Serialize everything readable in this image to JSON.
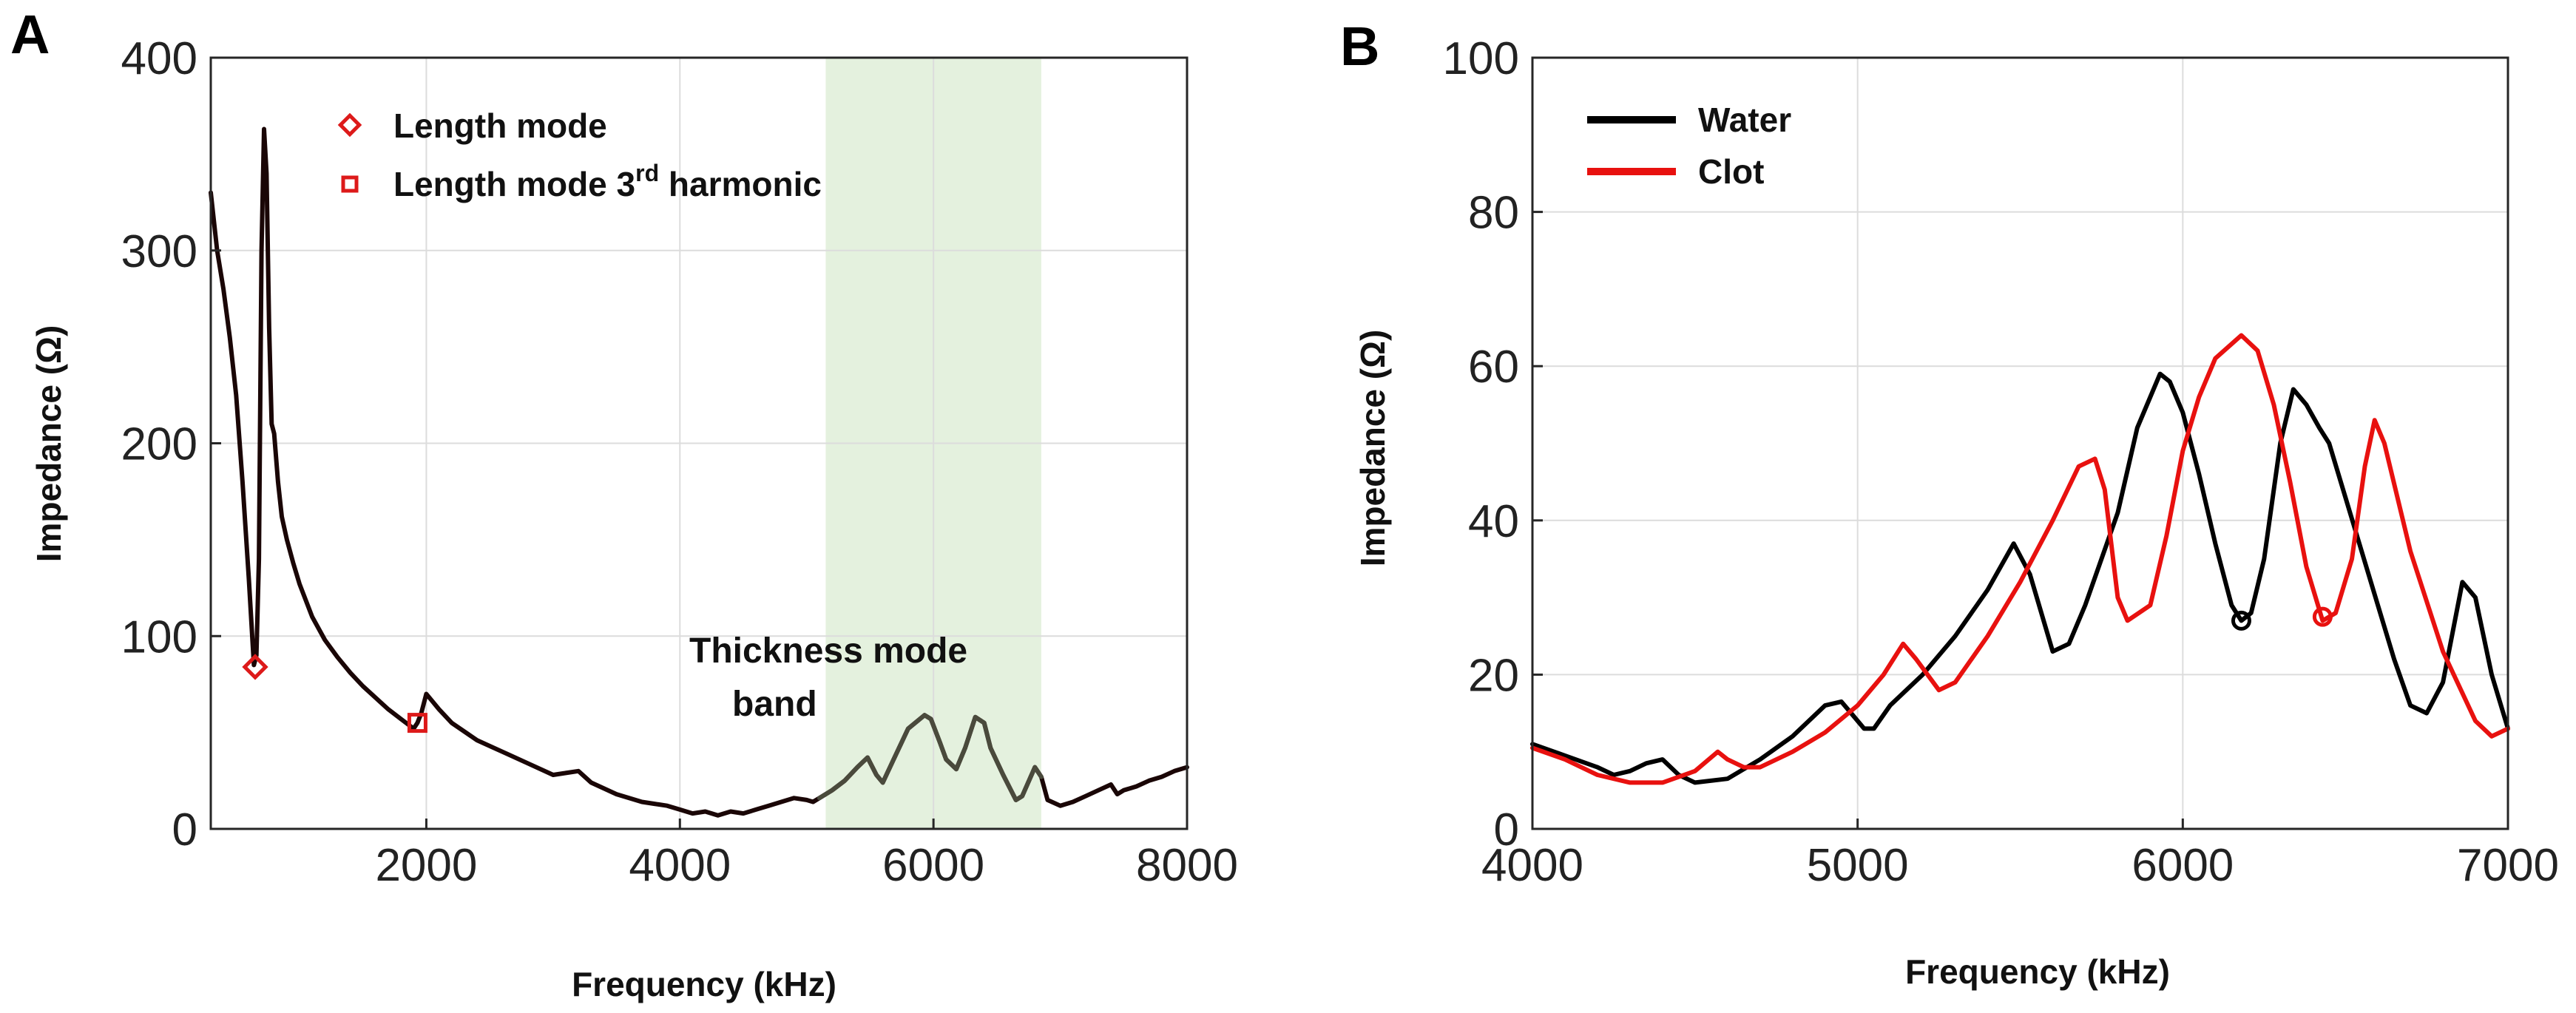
{
  "chart_data": [
    {
      "type": "line",
      "panel_label": "A",
      "xlabel": "Frequency (kHz)",
      "ylabel": "Impedance (Ω)",
      "xlim": [
        300,
        8000
      ],
      "ylim": [
        0,
        400
      ],
      "xticks": [
        2000,
        4000,
        6000,
        8000
      ],
      "yticks": [
        0,
        100,
        200,
        300,
        400
      ],
      "grid": true,
      "highlight_band": {
        "x_start": 5150,
        "x_end": 6850,
        "color": "#e4f1de"
      },
      "annotation": {
        "line1": "Thickness mode",
        "line2": "band"
      },
      "legend_position": "top-left",
      "legend": [
        {
          "label": "Length mode",
          "marker": "diamond",
          "color": "#dd1a1a"
        },
        {
          "label_prefix": "Length mode 3",
          "label_sup": "rd",
          "label_suffix": " harmonic",
          "marker": "square",
          "color": "#dd1a1a"
        }
      ],
      "markers": [
        {
          "series": "Length mode",
          "x": 650,
          "y": 84
        },
        {
          "series": "Length mode 3rd harmonic",
          "x": 1930,
          "y": 55
        }
      ],
      "series": [
        {
          "name": "Impedance",
          "color": "#1a0606",
          "band_color": "#4a4a3c",
          "x": [
            300,
            350,
            400,
            450,
            500,
            550,
            600,
            640,
            660,
            680,
            700,
            720,
            740,
            760,
            780,
            800,
            830,
            860,
            900,
            950,
            1000,
            1100,
            1200,
            1300,
            1400,
            1500,
            1600,
            1700,
            1800,
            1900,
            1930,
            1960,
            2000,
            2050,
            2100,
            2200,
            2400,
            2600,
            2800,
            3000,
            3100,
            3200,
            3300,
            3500,
            3700,
            3800,
            3900,
            4000,
            4100,
            4200,
            4300,
            4400,
            4500,
            4600,
            4700,
            4800,
            4900,
            5000,
            5050,
            5100,
            5200,
            5300,
            5400,
            5480,
            5550,
            5600,
            5700,
            5800,
            5930,
            5980,
            6050,
            6100,
            6180,
            6250,
            6330,
            6400,
            6450,
            6550,
            6650,
            6700,
            6800,
            6850,
            6900,
            7000,
            7100,
            7200,
            7300,
            7400,
            7450,
            7500,
            7600,
            7700,
            7800,
            7900,
            8000
          ],
          "y": [
            330,
            300,
            280,
            255,
            225,
            180,
            130,
            85,
            90,
            140,
            300,
            363,
            340,
            260,
            210,
            205,
            180,
            162,
            150,
            138,
            127,
            110,
            98,
            89,
            81,
            74,
            68,
            62,
            57,
            52,
            55,
            60,
            70,
            66,
            62,
            55,
            46,
            40,
            34,
            28,
            29,
            30,
            24,
            18,
            14,
            13,
            12,
            10,
            8,
            9,
            7,
            9,
            8,
            10,
            12,
            14,
            16,
            15,
            14,
            16,
            20,
            25,
            32,
            37,
            28,
            24,
            38,
            52,
            59,
            57,
            45,
            36,
            31,
            42,
            58,
            55,
            42,
            28,
            15,
            17,
            32,
            27,
            15,
            12,
            14,
            17,
            20,
            23,
            18,
            20,
            22,
            25,
            27,
            30,
            32
          ]
        }
      ]
    },
    {
      "type": "line",
      "panel_label": "B",
      "xlabel": "Frequency (kHz)",
      "ylabel": "Impedance (Ω)",
      "xlim": [
        4000,
        7000
      ],
      "ylim": [
        0,
        100
      ],
      "xticks": [
        4000,
        5000,
        6000,
        7000
      ],
      "yticks": [
        0,
        20,
        40,
        60,
        80,
        100
      ],
      "grid": true,
      "legend_position": "top-left",
      "legend": [
        {
          "label": "Water",
          "color": "#000000"
        },
        {
          "label": "Clot",
          "color": "#e8110f"
        }
      ],
      "markers": [
        {
          "series": "Water",
          "x": 6180,
          "y": 27,
          "marker": "circle",
          "color": "#000000"
        },
        {
          "series": "Clot",
          "x": 6430,
          "y": 27.5,
          "marker": "circle",
          "color": "#e8110f"
        }
      ],
      "series": [
        {
          "name": "Water",
          "color": "#000000",
          "x": [
            4000,
            4100,
            4200,
            4250,
            4300,
            4350,
            4400,
            4450,
            4500,
            4600,
            4700,
            4800,
            4900,
            4950,
            4980,
            5020,
            5050,
            5100,
            5200,
            5300,
            5400,
            5480,
            5530,
            5600,
            5650,
            5700,
            5800,
            5860,
            5930,
            5960,
            6000,
            6050,
            6100,
            6150,
            6180,
            6210,
            6250,
            6300,
            6340,
            6380,
            6420,
            6450,
            6500,
            6600,
            6650,
            6700,
            6750,
            6800,
            6860,
            6900,
            6950,
            7000
          ],
          "y": [
            11,
            9.5,
            8,
            7,
            7.5,
            8.5,
            9,
            7,
            6,
            6.5,
            9,
            12,
            16,
            16.5,
            15,
            13,
            13,
            16,
            20,
            25,
            31,
            37,
            33,
            23,
            24,
            29,
            41,
            52,
            59,
            58,
            54,
            46,
            37,
            29,
            27,
            28,
            35,
            50,
            57,
            55,
            52,
            50,
            43,
            29,
            22,
            16,
            15,
            19,
            32,
            30,
            20,
            13
          ]
        },
        {
          "name": "Clot",
          "color": "#e8110f",
          "x": [
            4000,
            4100,
            4200,
            4300,
            4400,
            4500,
            4570,
            4600,
            4650,
            4700,
            4800,
            4900,
            5000,
            5080,
            5140,
            5180,
            5250,
            5300,
            5400,
            5500,
            5600,
            5680,
            5730,
            5760,
            5800,
            5830,
            5900,
            5950,
            6000,
            6050,
            6100,
            6180,
            6230,
            6280,
            6330,
            6380,
            6430,
            6470,
            6520,
            6560,
            6590,
            6620,
            6700,
            6800,
            6900,
            6950,
            7000
          ],
          "y": [
            10.5,
            9,
            7,
            6,
            6,
            7.5,
            10,
            9,
            8,
            8,
            10,
            12.5,
            16,
            20,
            24,
            22,
            18,
            19,
            25,
            32,
            40,
            47,
            48,
            44,
            30,
            27,
            29,
            38,
            49,
            56,
            61,
            64,
            62,
            55,
            45,
            34,
            27,
            28,
            35,
            47,
            53,
            50,
            36,
            23,
            14,
            12,
            13
          ]
        }
      ]
    }
  ]
}
